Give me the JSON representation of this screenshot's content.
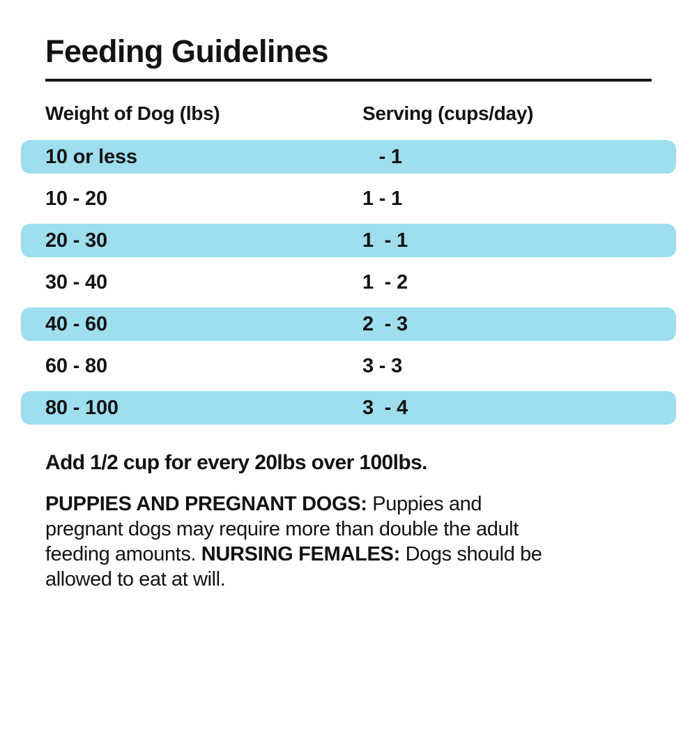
{
  "title": "Feeding Guidelines",
  "table": {
    "headers": {
      "weight": "Weight of Dog (lbs)",
      "serving": "Serving (cups/day)"
    },
    "rows": [
      {
        "weight": "10 or less",
        "serving": "   - 1",
        "highlighted": true
      },
      {
        "weight": "10 - 20",
        "serving": "1 - 1",
        "highlighted": false
      },
      {
        "weight": "20 - 30",
        "serving": "1  - 1",
        "highlighted": true
      },
      {
        "weight": "30 - 40",
        "serving": "1  - 2",
        "highlighted": false
      },
      {
        "weight": "40 - 60",
        "serving": "2  - 3",
        "highlighted": true
      },
      {
        "weight": "60 - 80",
        "serving": "3 - 3",
        "highlighted": false
      },
      {
        "weight": "80 - 100",
        "serving": "3  - 4",
        "highlighted": true
      }
    ]
  },
  "note": "Add 1/2 cup for every 20lbs over 100lbs.",
  "footer": {
    "bold1": "PUPPIES AND PREGNANT DOGS:",
    "text1": " Puppies and pregnant dogs may require more than double the adult feeding amounts. ",
    "bold2": "NURSING FEMALES:",
    "text2": " Dogs should be allowed to eat at will."
  },
  "colors": {
    "highlight": "#9EDEEF",
    "text": "#131313",
    "background": "#FFFFFF"
  }
}
